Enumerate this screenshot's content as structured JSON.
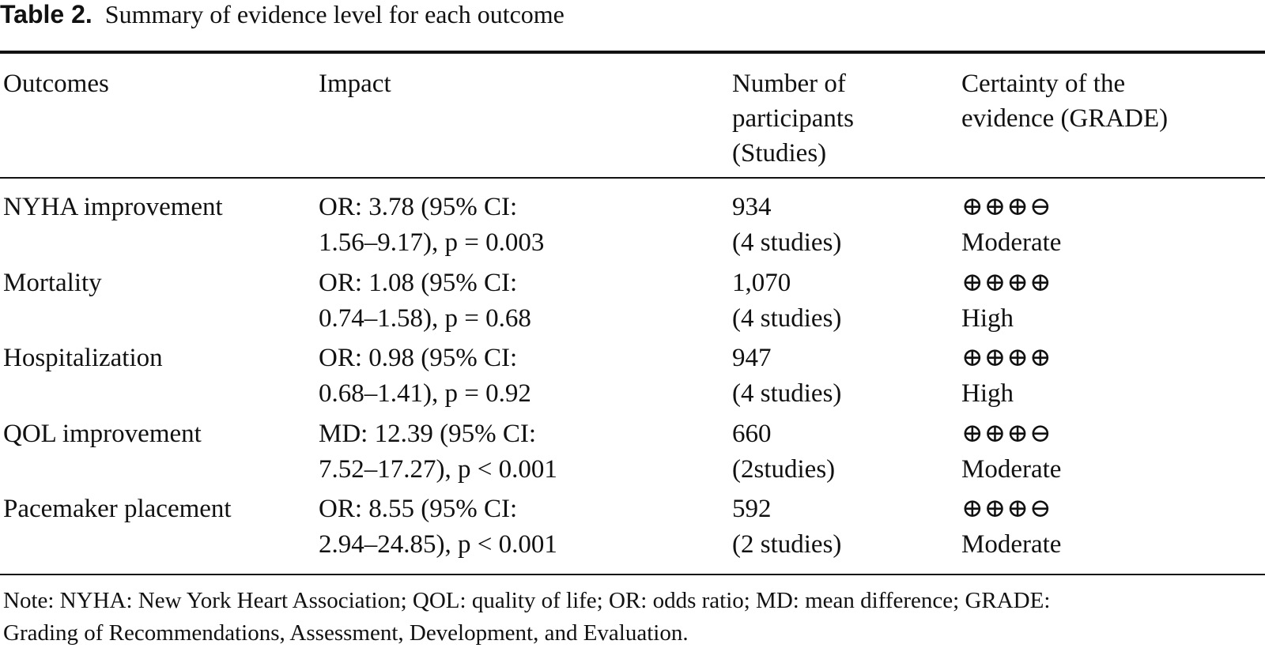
{
  "caption": {
    "label": "Table 2.",
    "text": "Summary of evidence level for each outcome"
  },
  "headers": {
    "outcomes": "Outcomes",
    "impact": "Impact",
    "participants": [
      "Number of",
      "participants",
      "(Studies)"
    ],
    "certainty": [
      "Certainty of the",
      "evidence (GRADE)"
    ]
  },
  "rows": [
    {
      "outcome": "NYHA improvement",
      "impact": [
        "OR: 3.78 (95% CI:",
        "1.56–9.17), p = 0.003"
      ],
      "participants": [
        "934",
        "(4 studies)"
      ],
      "symbols": "⊕⊕⊕⊖",
      "certainty": "Moderate"
    },
    {
      "outcome": "Mortality",
      "impact": [
        "OR: 1.08 (95% CI:",
        "0.74–1.58), p = 0.68"
      ],
      "participants": [
        "1,070",
        "(4 studies)"
      ],
      "symbols": "⊕⊕⊕⊕",
      "certainty": "High"
    },
    {
      "outcome": "Hospitalization",
      "impact": [
        "OR: 0.98 (95% CI:",
        "0.68–1.41), p = 0.92"
      ],
      "participants": [
        "947",
        "(4 studies)"
      ],
      "symbols": "⊕⊕⊕⊕",
      "certainty": "High"
    },
    {
      "outcome": "QOL improvement",
      "impact": [
        "MD: 12.39 (95% CI:",
        "7.52–17.27), p < 0.001"
      ],
      "participants": [
        "660",
        "(2studies)"
      ],
      "symbols": "⊕⊕⊕⊖",
      "certainty": "Moderate"
    },
    {
      "outcome": "Pacemaker placement",
      "impact": [
        "OR: 8.55 (95% CI:",
        "2.94–24.85), p < 0.001"
      ],
      "participants": [
        "592",
        "(2 studies)"
      ],
      "symbols": "⊕⊕⊕⊖",
      "certainty": "Moderate"
    }
  ],
  "note": [
    "Note: NYHA: New York Heart Association; QOL: quality of life; OR: odds ratio; MD: mean difference; GRADE:",
    "Grading of Recommendations, Assessment, Development, and Evaluation."
  ]
}
